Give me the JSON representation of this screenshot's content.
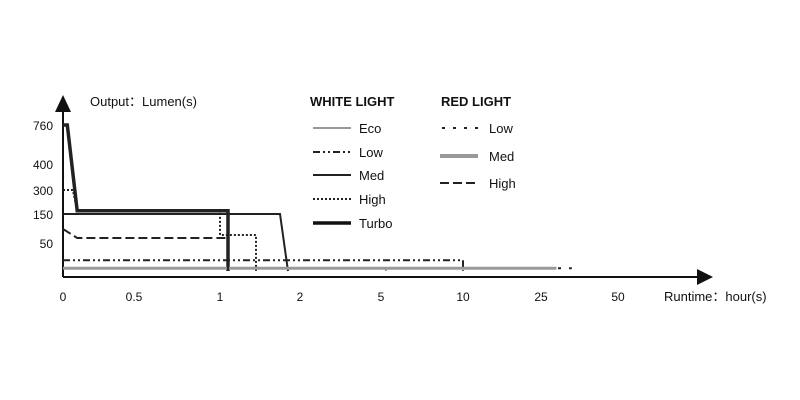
{
  "chart_data": {
    "type": "line",
    "ylabel": "Output：Lumen(s)",
    "xlabel": "Runtime：hour(s)",
    "y_ticks": [
      "760",
      "400",
      "300",
      "150",
      "50"
    ],
    "x_ticks": [
      "0",
      "0.5",
      "1",
      "2",
      "5",
      "10",
      "25",
      "50"
    ],
    "legend_groups": [
      {
        "title": "WHITE LIGHT",
        "entries": [
          "Eco",
          "Low",
          "Med",
          "High",
          "Turbo"
        ]
      },
      {
        "title": "RED LIGHT",
        "entries": [
          "Low",
          "Med",
          "High"
        ]
      }
    ],
    "series": [
      {
        "group": "WHITE LIGHT",
        "name": "Eco",
        "color": "#999999",
        "style": "solid",
        "points": [
          [
            0,
            5
          ],
          [
            5.3,
            5
          ],
          [
            5.3,
            0
          ]
        ]
      },
      {
        "group": "WHITE LIGHT",
        "name": "Low",
        "color": "#222222",
        "style": "dashdotdot",
        "points": [
          [
            0,
            20
          ],
          [
            10,
            20
          ],
          [
            10,
            0
          ]
        ]
      },
      {
        "group": "WHITE LIGHT",
        "name": "Med",
        "color": "#222222",
        "style": "solid",
        "points": [
          [
            0,
            150
          ],
          [
            1.75,
            150
          ],
          [
            1.85,
            0
          ]
        ]
      },
      {
        "group": "WHITE LIGHT",
        "name": "High",
        "color": "#222222",
        "style": "dotted",
        "points": [
          [
            0,
            300
          ],
          [
            0.07,
            300
          ],
          [
            0.1,
            170
          ],
          [
            1.0,
            170
          ],
          [
            1.0,
            80
          ],
          [
            1.45,
            80
          ],
          [
            1.45,
            0
          ]
        ]
      },
      {
        "group": "WHITE LIGHT",
        "name": "Turbo",
        "color": "#222222",
        "style": "thick",
        "points": [
          [
            0,
            760
          ],
          [
            0.03,
            760
          ],
          [
            0.1,
            170
          ],
          [
            1.1,
            170
          ],
          [
            1.1,
            0
          ]
        ]
      },
      {
        "group": "RED LIGHT",
        "name": "Low",
        "color": "#222222",
        "style": "dashed-sparse",
        "points": [
          [
            0,
            5
          ],
          [
            35,
            5
          ]
        ]
      },
      {
        "group": "RED LIGHT",
        "name": "Med",
        "color": "#999999",
        "style": "thick-gray",
        "points": [
          [
            0,
            5
          ],
          [
            30,
            5
          ]
        ]
      },
      {
        "group": "RED LIGHT",
        "name": "High",
        "color": "#222222",
        "style": "dashed",
        "points": [
          [
            0,
            100
          ],
          [
            0.1,
            70
          ],
          [
            1.0,
            70
          ],
          [
            1.1,
            70
          ],
          [
            1.1,
            0
          ]
        ]
      }
    ]
  }
}
